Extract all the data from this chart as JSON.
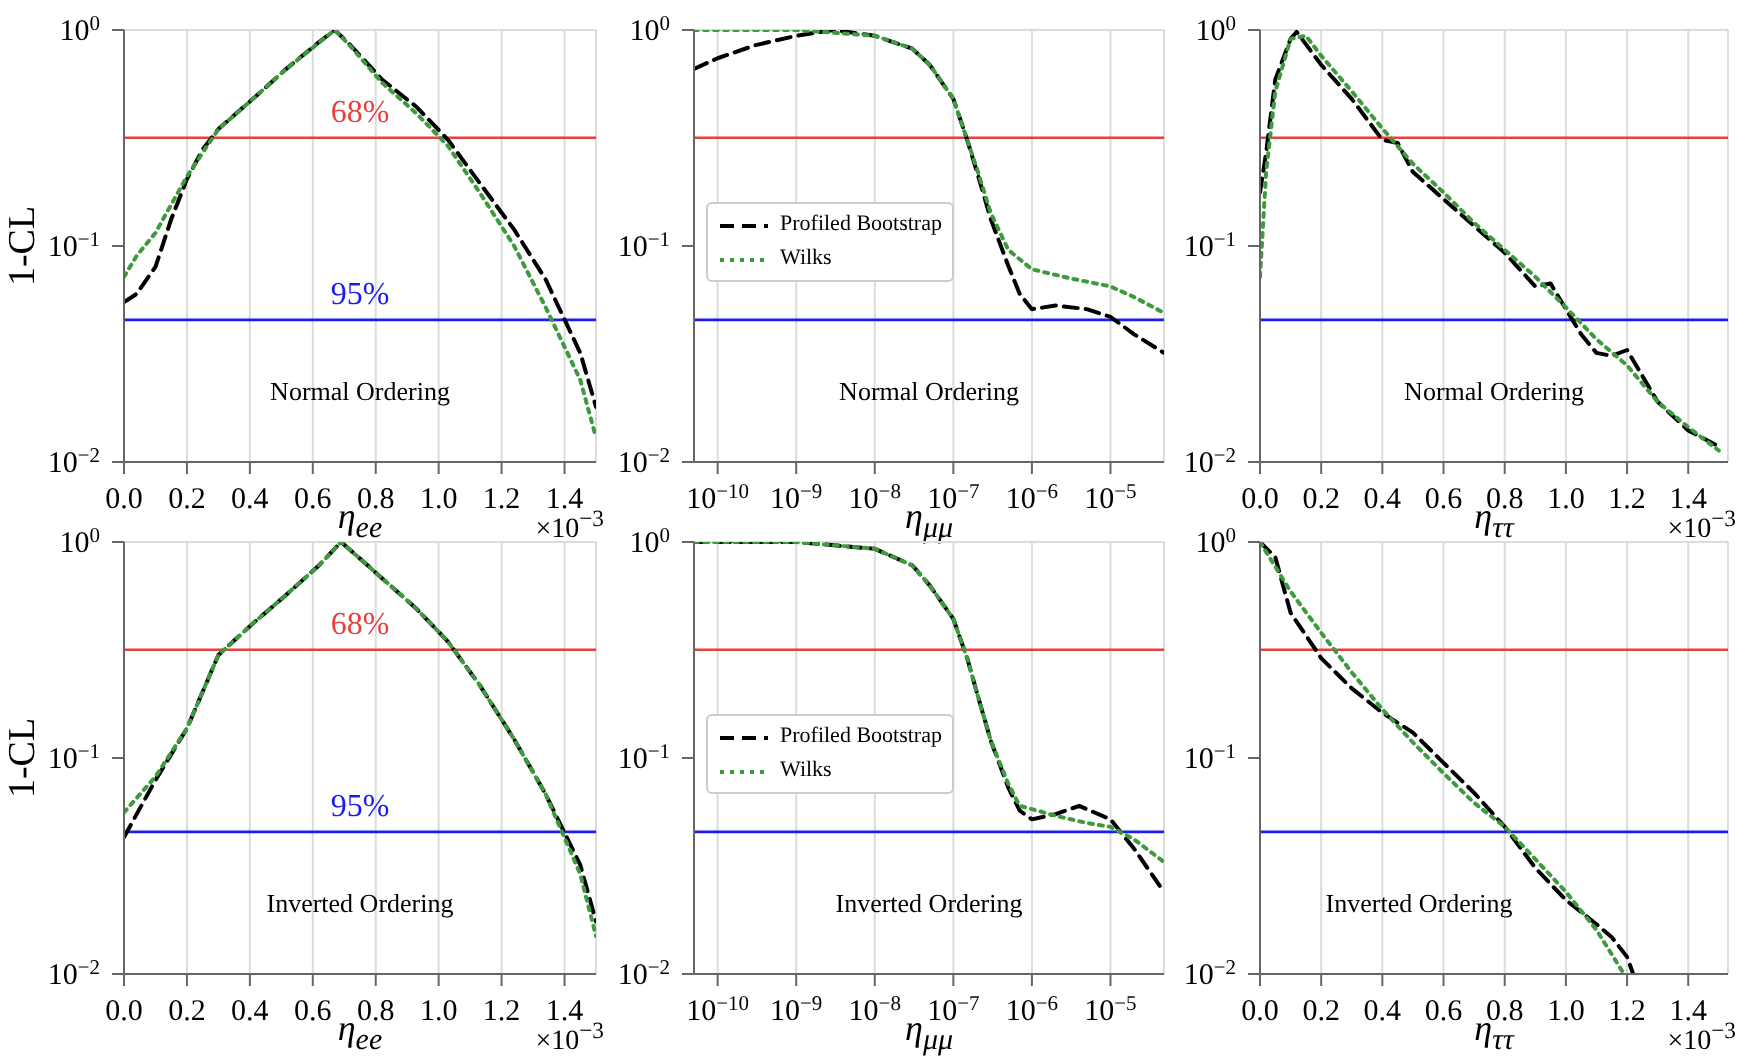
{
  "chart_data": [
    {
      "type": "line",
      "ylabel": "1-CL",
      "xlabel": "η$_{ee}$",
      "log": true,
      "grid": true,
      "xlim": [
        0,
        1.5
      ],
      "ylim": [
        0.01,
        1
      ],
      "xticks": [
        {
          "value": 0,
          "label": "0.0"
        },
        0.2,
        0.4,
        0.6,
        0.8,
        {
          "value": 1,
          "label": "1.0"
        },
        1.2,
        1.4
      ],
      "yticks": [
        {
          "value": 0.01,
          "label": "10$^{−2}$"
        },
        {
          "value": 0.1,
          "label": "10$^{−1}$"
        },
        {
          "value": 1,
          "label": "10$^{0}$"
        }
      ],
      "ref_lines": [
        {
          "axis": "y",
          "value": 0.317,
          "color": "#e8413c"
        },
        {
          "axis": "y",
          "value": 0.0455,
          "color": "#1c1cf0"
        }
      ],
      "annotations": [
        "Normal Ordering",
        "×10$^{−3}$",
        {
          "text": "68%",
          "y": 0.317
        },
        {
          "text": "95%",
          "y": 0.0455
        }
      ],
      "series": [
        {
          "color": "#000000",
          "line_style": "dashed",
          "x": [
            0,
            0.04,
            0.1,
            0.15,
            0.2,
            0.25,
            0.3,
            0.41,
            0.51,
            0.62,
            0.67,
            0.72,
            0.82,
            0.93,
            1.03,
            1.13,
            1.24,
            1.34,
            1.45,
            1.5
          ],
          "values": [
            0.055,
            0.06,
            0.08,
            0.133,
            0.204,
            0.28,
            0.348,
            0.48,
            0.65,
            0.88,
            1.0,
            0.85,
            0.59,
            0.44,
            0.31,
            0.196,
            0.119,
            0.07,
            0.032,
            0.018
          ]
        },
        {
          "color": "#3d9a3d",
          "line_style": "dotted",
          "x": [
            0,
            0.04,
            0.1,
            0.2,
            0.3,
            0.41,
            0.51,
            0.67,
            0.72,
            0.82,
            0.93,
            1.03,
            1.13,
            1.24,
            1.34,
            1.45,
            1.5
          ],
          "values": [
            0.072,
            0.09,
            0.115,
            0.21,
            0.348,
            0.48,
            0.65,
            1.0,
            0.84,
            0.57,
            0.41,
            0.29,
            0.177,
            0.1,
            0.052,
            0.024,
            0.013
          ]
        }
      ]
    },
    {
      "type": "line",
      "xlabel": "η$_{μμ}$",
      "log": "xy",
      "grid": true,
      "legend": "center left",
      "xlim": [
        5e-11,
        4.8e-05
      ],
      "ylim": [
        0.01,
        1
      ],
      "xticks": [
        {
          "value": 1e-10,
          "label": "10$^{−10}$"
        },
        {
          "value": 1e-09,
          "label": "10$^{−9}$"
        },
        {
          "value": 1e-08,
          "label": "10$^{−8}$"
        },
        {
          "value": 1e-07,
          "label": "10$^{−7}$"
        },
        {
          "value": 1e-06,
          "label": "10$^{−6}$"
        },
        {
          "value": 1e-05,
          "label": "10$^{−5}$"
        }
      ],
      "yticks": [
        {
          "value": 0.01,
          "label": "10$^{−2}$"
        },
        {
          "value": 0.1,
          "label": "10$^{−1}$"
        },
        {
          "value": 1,
          "label": "10$^{0}$"
        }
      ],
      "ref_lines": [
        {
          "axis": "y",
          "value": 0.317,
          "color": "#e8413c"
        },
        {
          "axis": "y",
          "value": 0.0455,
          "color": "#1c1cf0"
        }
      ],
      "annotations": [
        "Normal Ordering"
      ],
      "series": [
        {
          "name": "Profiled Bootstrap",
          "color": "#000000",
          "line_style": "dashed",
          "x": [
            5e-11,
            1e-10,
            3e-10,
            1e-09,
            3e-09,
            1e-08,
            3e-08,
            5e-08,
            1e-07,
            1.5e-07,
            2e-07,
            3e-07,
            5e-07,
            7e-07,
            1e-06,
            2e-06,
            5e-06,
            1e-05,
            2e-05,
            4.8e-05
          ],
          "values": [
            0.66,
            0.74,
            0.85,
            0.94,
            1.0,
            0.94,
            0.82,
            0.69,
            0.48,
            0.31,
            0.22,
            0.133,
            0.081,
            0.06,
            0.051,
            0.053,
            0.051,
            0.047,
            0.039,
            0.032
          ]
        },
        {
          "name": "Wilks",
          "color": "#3d9a3d",
          "line_style": "dotted",
          "x": [
            5e-11,
            1e-09,
            1e-08,
            3e-08,
            5e-08,
            1e-07,
            1.5e-07,
            2e-07,
            3e-07,
            5e-07,
            1e-06,
            3e-06,
            1e-05,
            2e-05,
            4.8e-05
          ],
          "values": [
            1.0,
            1.0,
            0.94,
            0.82,
            0.69,
            0.48,
            0.31,
            0.227,
            0.142,
            0.096,
            0.078,
            0.071,
            0.065,
            0.058,
            0.049
          ]
        }
      ]
    },
    {
      "type": "line",
      "xlabel": "η$_{ττ}$",
      "log": true,
      "grid": true,
      "xlim": [
        0,
        1.53
      ],
      "ylim": [
        0.01,
        1
      ],
      "xticks": [
        {
          "value": 0,
          "label": "0.0"
        },
        0.2,
        0.4,
        0.6,
        0.8,
        {
          "value": 1,
          "label": "1.0"
        },
        1.2,
        1.4
      ],
      "yticks": [
        {
          "value": 0.01,
          "label": "10$^{−2}$"
        },
        {
          "value": 0.1,
          "label": "10$^{−1}$"
        },
        {
          "value": 1,
          "label": "10$^{0}$"
        }
      ],
      "ref_lines": [
        {
          "axis": "y",
          "value": 0.317,
          "color": "#e8413c"
        },
        {
          "axis": "y",
          "value": 0.0455,
          "color": "#1c1cf0"
        }
      ],
      "annotations": [
        "Normal Ordering",
        "×10$^{−3}$"
      ],
      "series": [
        {
          "color": "#000000",
          "line_style": "dashed",
          "x": [
            0,
            0.02,
            0.05,
            0.1,
            0.12,
            0.2,
            0.3,
            0.4,
            0.45,
            0.5,
            0.6,
            0.7,
            0.8,
            0.9,
            0.95,
            1.0,
            1.05,
            1.1,
            1.15,
            1.2,
            1.3,
            1.4,
            1.5
          ],
          "values": [
            0.177,
            0.27,
            0.59,
            0.91,
            0.98,
            0.69,
            0.48,
            0.31,
            0.3,
            0.22,
            0.165,
            0.124,
            0.093,
            0.065,
            0.067,
            0.051,
            0.039,
            0.032,
            0.031,
            0.033,
            0.019,
            0.014,
            0.0118
          ]
        },
        {
          "color": "#3d9a3d",
          "line_style": "dotted",
          "x": [
            0,
            0.02,
            0.05,
            0.1,
            0.15,
            0.2,
            0.3,
            0.4,
            0.5,
            0.6,
            0.7,
            0.8,
            0.9,
            1.0,
            1.1,
            1.2,
            1.3,
            1.4,
            1.5
          ],
          "values": [
            0.072,
            0.22,
            0.52,
            0.91,
            0.94,
            0.76,
            0.52,
            0.35,
            0.24,
            0.177,
            0.128,
            0.096,
            0.072,
            0.052,
            0.037,
            0.028,
            0.019,
            0.0145,
            0.0113
          ]
        }
      ]
    },
    {
      "type": "line",
      "ylabel": "1-CL",
      "xlabel": "η$_{ee}$",
      "log": true,
      "grid": true,
      "xlim": [
        0,
        1.5
      ],
      "ylim": [
        0.01,
        1
      ],
      "xticks": [
        {
          "value": 0,
          "label": "0.0"
        },
        0.2,
        0.4,
        0.6,
        0.8,
        {
          "value": 1,
          "label": "1.0"
        },
        1.2,
        1.4
      ],
      "yticks": [
        {
          "value": 0.01,
          "label": "10$^{−2}$"
        },
        {
          "value": 0.1,
          "label": "10$^{−1}$"
        },
        {
          "value": 1,
          "label": "10$^{0}$"
        }
      ],
      "ref_lines": [
        {
          "axis": "y",
          "value": 0.317,
          "color": "#e8413c"
        },
        {
          "axis": "y",
          "value": 0.0455,
          "color": "#1c1cf0"
        }
      ],
      "annotations": [
        "Inverted Ordering",
        "×10$^{−3}$",
        {
          "text": "68%",
          "y": 0.317
        },
        {
          "text": "95%",
          "y": 0.0455
        }
      ],
      "series": [
        {
          "color": "#000000",
          "line_style": "dashed",
          "x": [
            0,
            0.1,
            0.2,
            0.3,
            0.41,
            0.51,
            0.62,
            0.69,
            0.82,
            0.93,
            1.03,
            1.13,
            1.24,
            1.34,
            1.45,
            1.5
          ],
          "values": [
            0.043,
            0.079,
            0.137,
            0.3,
            0.42,
            0.56,
            0.78,
            1.0,
            0.68,
            0.49,
            0.345,
            0.218,
            0.122,
            0.068,
            0.032,
            0.0175
          ]
        },
        {
          "color": "#3d9a3d",
          "line_style": "dotted",
          "x": [
            0,
            0.1,
            0.2,
            0.3,
            0.41,
            0.51,
            0.62,
            0.69,
            0.82,
            0.93,
            1.03,
            1.13,
            1.24,
            1.34,
            1.45,
            1.5
          ],
          "values": [
            0.056,
            0.082,
            0.137,
            0.3,
            0.42,
            0.56,
            0.78,
            1.0,
            0.68,
            0.49,
            0.345,
            0.218,
            0.122,
            0.068,
            0.029,
            0.015
          ]
        }
      ]
    },
    {
      "type": "line",
      "xlabel": "η$_{μμ}$",
      "log": "xy",
      "grid": true,
      "legend": "center left",
      "xlim": [
        5e-11,
        4.8e-05
      ],
      "ylim": [
        0.01,
        1
      ],
      "xticks": [
        {
          "value": 1e-10,
          "label": "10$^{−10}$"
        },
        {
          "value": 1e-09,
          "label": "10$^{−9}$"
        },
        {
          "value": 1e-08,
          "label": "10$^{−8}$"
        },
        {
          "value": 1e-07,
          "label": "10$^{−7}$"
        },
        {
          "value": 1e-06,
          "label": "10$^{−6}$"
        },
        {
          "value": 1e-05,
          "label": "10$^{−5}$"
        }
      ],
      "yticks": [
        {
          "value": 0.01,
          "label": "10$^{−2}$"
        },
        {
          "value": 0.1,
          "label": "10$^{−1}$"
        },
        {
          "value": 1,
          "label": "10$^{0}$"
        }
      ],
      "ref_lines": [
        {
          "axis": "y",
          "value": 0.317,
          "color": "#e8413c"
        },
        {
          "axis": "y",
          "value": 0.0455,
          "color": "#1c1cf0"
        }
      ],
      "annotations": [
        "Inverted Ordering"
      ],
      "series": [
        {
          "name": "Profiled Bootstrap",
          "color": "#000000",
          "line_style": "dashed",
          "x": [
            5e-11,
            1e-09,
            1e-08,
            3e-08,
            5e-08,
            1e-07,
            1.5e-07,
            2e-07,
            3e-07,
            5e-07,
            7e-07,
            1e-06,
            2e-06,
            4e-06,
            1e-05,
            2e-05,
            4.8e-05
          ],
          "values": [
            1.0,
            1.0,
            0.93,
            0.78,
            0.63,
            0.44,
            0.29,
            0.2,
            0.12,
            0.073,
            0.057,
            0.052,
            0.055,
            0.06,
            0.052,
            0.038,
            0.024
          ]
        },
        {
          "name": "Wilks",
          "color": "#3d9a3d",
          "line_style": "dotted",
          "x": [
            5e-11,
            1e-09,
            1e-08,
            3e-08,
            5e-08,
            1e-07,
            1.5e-07,
            2e-07,
            3e-07,
            5e-07,
            7e-07,
            1e-06,
            2e-06,
            5e-06,
            1e-05,
            2e-05,
            4.8e-05
          ],
          "values": [
            1.0,
            1.0,
            0.93,
            0.78,
            0.63,
            0.44,
            0.29,
            0.2,
            0.12,
            0.076,
            0.06,
            0.058,
            0.054,
            0.05,
            0.048,
            0.042,
            0.033
          ]
        }
      ]
    },
    {
      "type": "line",
      "xlabel": "η$_{ττ}$",
      "log": true,
      "grid": true,
      "xlim": [
        0,
        1.53
      ],
      "ylim": [
        0.01,
        1
      ],
      "xticks": [
        {
          "value": 0,
          "label": "0.0"
        },
        0.2,
        0.4,
        0.6,
        0.8,
        {
          "value": 1,
          "label": "1.0"
        },
        1.2,
        1.4
      ],
      "yticks": [
        {
          "value": 0.01,
          "label": "10$^{−2}$"
        },
        {
          "value": 0.1,
          "label": "10$^{−1}$"
        },
        {
          "value": 1,
          "label": "10$^{0}$"
        }
      ],
      "ref_lines": [
        {
          "axis": "y",
          "value": 0.317,
          "color": "#e8413c"
        },
        {
          "axis": "y",
          "value": 0.0455,
          "color": "#1c1cf0"
        }
      ],
      "annotations": [
        "Inverted Ordering",
        "×10$^{−3}$"
      ],
      "series": [
        {
          "color": "#000000",
          "line_style": "dashed",
          "x": [
            0,
            0.05,
            0.1,
            0.18,
            0.2,
            0.3,
            0.4,
            0.5,
            0.6,
            0.7,
            0.8,
            0.9,
            1.0,
            1.1,
            1.15,
            1.2,
            1.22
          ],
          "values": [
            1.0,
            0.85,
            0.47,
            0.32,
            0.29,
            0.21,
            0.162,
            0.131,
            0.095,
            0.069,
            0.048,
            0.031,
            0.022,
            0.017,
            0.0148,
            0.012,
            0.01
          ]
        },
        {
          "color": "#3d9a3d",
          "line_style": "dotted",
          "x": [
            0,
            0.1,
            0.2,
            0.3,
            0.4,
            0.5,
            0.6,
            0.7,
            0.8,
            0.9,
            1.0,
            1.1,
            1.19
          ],
          "values": [
            1.0,
            0.59,
            0.38,
            0.249,
            0.168,
            0.118,
            0.085,
            0.062,
            0.048,
            0.034,
            0.024,
            0.016,
            0.01
          ]
        }
      ]
    }
  ]
}
